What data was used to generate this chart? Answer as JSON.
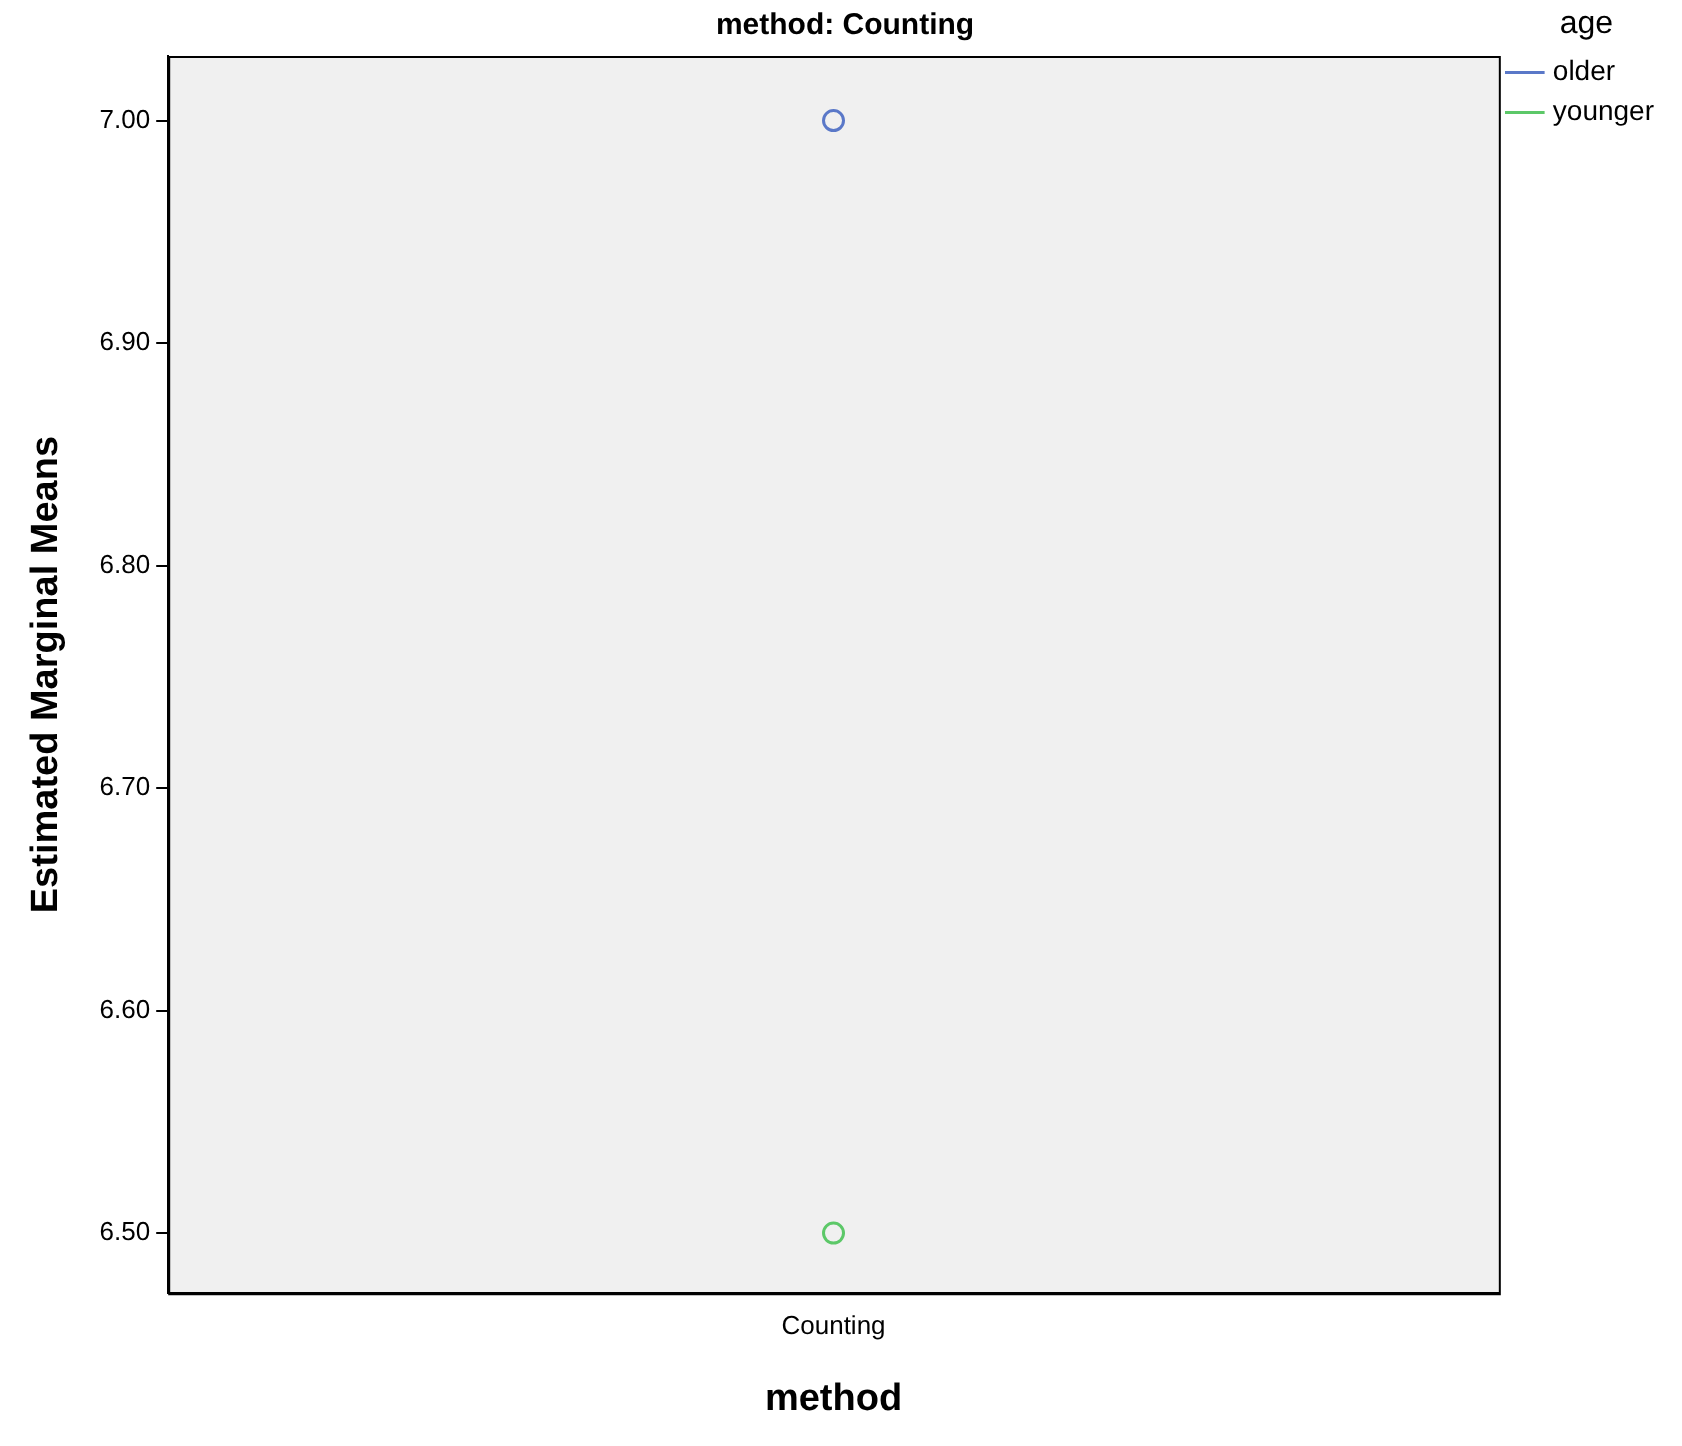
{
  "chart_data": {
    "type": "line",
    "title": "method: Counting",
    "xlabel": "method",
    "ylabel": "Estimated Marginal Means",
    "legend_title": "age",
    "categories": [
      "Counting"
    ],
    "series": [
      {
        "name": "older",
        "color": "#5a78c8",
        "values": [
          7.0
        ]
      },
      {
        "name": "younger",
        "color": "#5cc868",
        "values": [
          6.5
        ]
      }
    ],
    "ylim": [
      6.473,
      7.029
    ],
    "yticks": [
      {
        "value": 6.5,
        "label": "6.50"
      },
      {
        "value": 6.6,
        "label": "6.60"
      },
      {
        "value": 6.7,
        "label": "6.70"
      },
      {
        "value": 6.8,
        "label": "6.80"
      },
      {
        "value": 6.9,
        "label": "6.90"
      },
      {
        "value": 7.0,
        "label": "7.00"
      }
    ],
    "grid": false,
    "legend": "right",
    "marker": "circle"
  }
}
